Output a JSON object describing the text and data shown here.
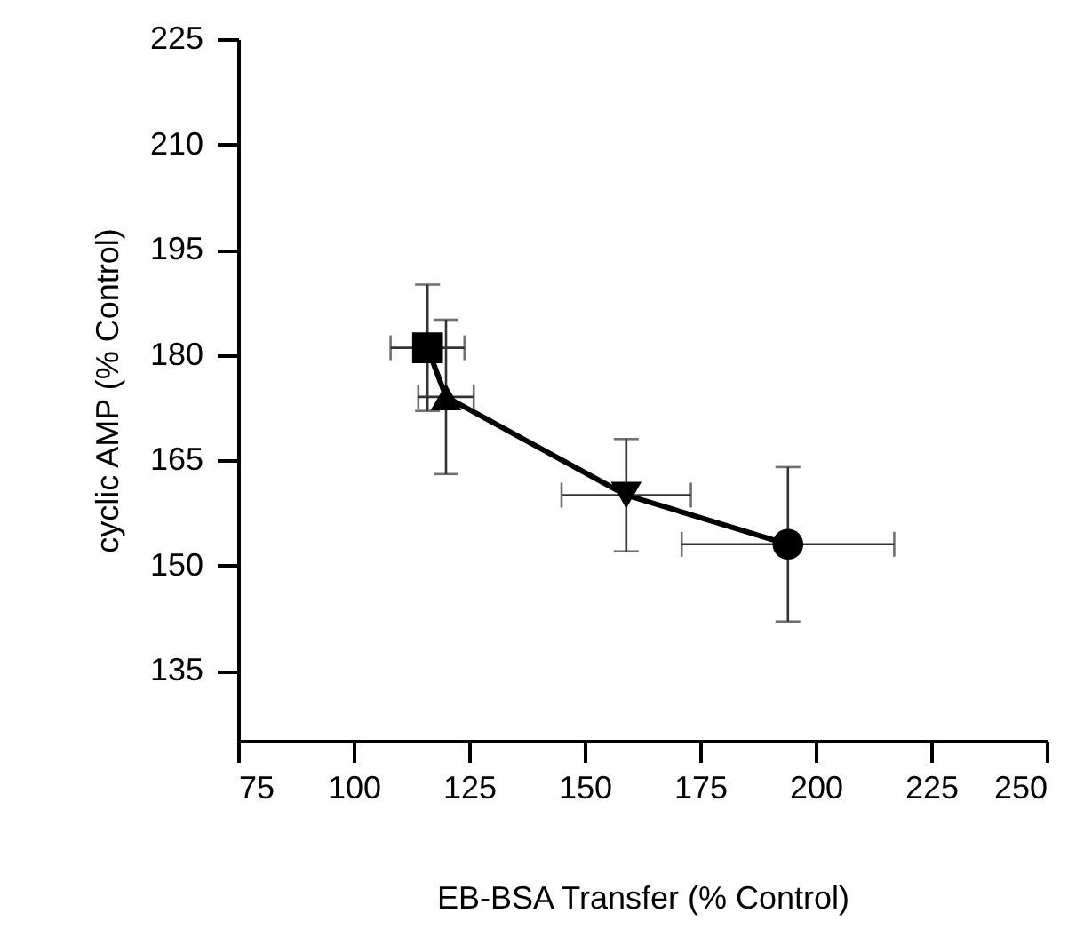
{
  "chart_data": {
    "type": "line",
    "xlabel": "EB-BSA Transfer (% Control)",
    "ylabel": "cyclic AMP (% Control)",
    "xlim": [
      75,
      250
    ],
    "xticks": [
      75,
      100,
      125,
      150,
      175,
      200,
      225,
      250
    ],
    "ylim": [
      125,
      225
    ],
    "yticks": [
      135,
      150,
      165,
      180,
      195,
      210,
      225
    ],
    "grid": false,
    "series": [
      {
        "color": "#000000",
        "marker": "none",
        "line_style": "solid",
        "x": [
          116,
          120,
          159,
          194
        ],
        "values": [
          181,
          174,
          160,
          153
        ]
      },
      {
        "type": "scatter",
        "color": "#000000",
        "marker": "square",
        "x": [
          116
        ],
        "values": [
          181
        ],
        "errors": [
          [
            172,
            190
          ]
        ],
        "xerrors": [
          [
            108,
            124
          ]
        ]
      },
      {
        "type": "scatter",
        "color": "#000000",
        "marker": "triangle",
        "x": [
          120
        ],
        "values": [
          174
        ],
        "errors": [
          [
            163,
            185
          ]
        ],
        "xerrors": [
          [
            114,
            126
          ]
        ]
      },
      {
        "type": "scatter",
        "color": "#000000",
        "marker": "triangle-down",
        "x": [
          159
        ],
        "values": [
          160
        ],
        "errors": [
          [
            152,
            168
          ]
        ],
        "xerrors": [
          [
            145,
            173
          ]
        ]
      },
      {
        "type": "scatter",
        "color": "#000000",
        "marker": "circle",
        "x": [
          194
        ],
        "values": [
          153
        ],
        "errors": [
          [
            142,
            164
          ]
        ],
        "xerrors": [
          [
            171,
            217
          ]
        ]
      }
    ]
  }
}
